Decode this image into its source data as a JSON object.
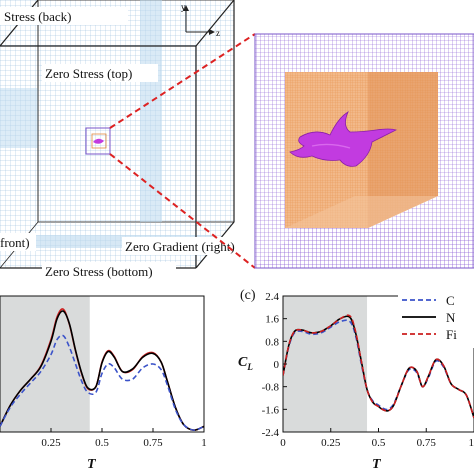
{
  "diagram": {
    "boundary_labels": {
      "back": "Stress (back)",
      "top": "Zero Stress (top)",
      "right": "Zero Gradient (right)",
      "front": "front)",
      "bottom": "Zero Stress (bottom)"
    },
    "axis_labels": {
      "y": "y",
      "z": "z"
    }
  },
  "chart_data": [
    {
      "type": "line",
      "panel": "left",
      "xlabel": "T",
      "x_ticks": [
        "0.25",
        "0.5",
        "0.75",
        "1"
      ],
      "xlim": [
        0,
        1
      ],
      "ylim": [
        -1.25,
        2.35
      ],
      "shaded_region": [
        0,
        0.44
      ],
      "series": [
        {
          "color": "#cc1f1f",
          "style": "solid",
          "x": [
            0,
            0.05,
            0.1,
            0.15,
            0.2,
            0.25,
            0.28,
            0.31,
            0.34,
            0.37,
            0.4,
            0.43,
            0.47,
            0.5,
            0.53,
            0.56,
            0.6,
            0.65,
            0.7,
            0.75,
            0.79,
            0.82,
            0.86,
            0.9,
            0.95,
            1.0
          ],
          "y": [
            -1.1,
            -0.55,
            -0.15,
            0.15,
            0.5,
            1.2,
            1.8,
            2.0,
            1.6,
            0.9,
            0.3,
            -0.1,
            -0.05,
            0.6,
            0.9,
            0.75,
            0.35,
            0.4,
            0.75,
            0.85,
            0.6,
            0.1,
            -0.6,
            -1.05,
            -1.2,
            -1.1
          ]
        },
        {
          "color": "#000000",
          "style": "solid",
          "x": [
            0,
            0.05,
            0.1,
            0.15,
            0.2,
            0.25,
            0.28,
            0.31,
            0.34,
            0.37,
            0.4,
            0.43,
            0.47,
            0.5,
            0.53,
            0.56,
            0.6,
            0.65,
            0.7,
            0.75,
            0.79,
            0.82,
            0.86,
            0.9,
            0.95,
            1.0
          ],
          "y": [
            -1.1,
            -0.55,
            -0.15,
            0.15,
            0.48,
            1.15,
            1.75,
            1.95,
            1.62,
            0.92,
            0.32,
            -0.08,
            -0.05,
            0.58,
            0.88,
            0.73,
            0.35,
            0.42,
            0.73,
            0.83,
            0.6,
            0.1,
            -0.6,
            -1.05,
            -1.2,
            -1.1
          ]
        },
        {
          "color": "#3b53c9",
          "style": "dashed",
          "x": [
            0,
            0.05,
            0.1,
            0.15,
            0.2,
            0.25,
            0.28,
            0.31,
            0.34,
            0.37,
            0.4,
            0.43,
            0.47,
            0.5,
            0.53,
            0.56,
            0.6,
            0.65,
            0.7,
            0.75,
            0.79,
            0.82,
            0.86,
            0.9,
            0.95,
            1.0
          ],
          "y": [
            -1.1,
            -0.6,
            -0.25,
            0.05,
            0.35,
            0.8,
            1.2,
            1.3,
            1.0,
            0.55,
            0.1,
            -0.2,
            -0.2,
            0.3,
            0.55,
            0.45,
            0.15,
            0.15,
            0.45,
            0.55,
            0.4,
            0.0,
            -0.65,
            -1.05,
            -1.2,
            -1.1
          ]
        }
      ]
    },
    {
      "type": "line",
      "panel": "c",
      "panel_label": "(c)",
      "ylabel": "C",
      "ylabel_sub": "L",
      "xlabel": "T",
      "x_ticks": [
        "0",
        "0.25",
        "0.5",
        "0.75",
        "1"
      ],
      "y_ticks": [
        "2.4",
        "1.6",
        "0.8",
        "0",
        "-0.8",
        "-1.6",
        "-2.4"
      ],
      "xlim": [
        0,
        1
      ],
      "ylim": [
        -2.4,
        2.4
      ],
      "shaded_region": [
        0,
        0.44
      ],
      "legend": {
        "position": "top-right",
        "entries": [
          "C",
          "N",
          "Fi"
        ]
      },
      "series": [
        {
          "name": "C",
          "color": "#3b53c9",
          "style": "dashed",
          "x": [
            0,
            0.03,
            0.06,
            0.1,
            0.15,
            0.2,
            0.25,
            0.3,
            0.35,
            0.38,
            0.41,
            0.44,
            0.47,
            0.5,
            0.52,
            0.55,
            0.58,
            0.62,
            0.66,
            0.7,
            0.73,
            0.76,
            0.8,
            0.84,
            0.88,
            0.92,
            0.96,
            1.0
          ],
          "y": [
            -0.4,
            0.6,
            1.1,
            1.15,
            1.05,
            1.1,
            1.3,
            1.5,
            1.5,
            1.0,
            0.0,
            -0.9,
            -1.3,
            -1.45,
            -1.55,
            -1.6,
            -1.4,
            -0.75,
            -0.2,
            -0.3,
            -0.8,
            -0.5,
            0.1,
            -0.1,
            -0.7,
            -0.9,
            -1.1,
            -1.9
          ]
        },
        {
          "name": "N",
          "color": "#000000",
          "style": "solid",
          "x": [
            0,
            0.03,
            0.06,
            0.1,
            0.15,
            0.2,
            0.25,
            0.3,
            0.35,
            0.38,
            0.41,
            0.44,
            0.47,
            0.5,
            0.52,
            0.55,
            0.58,
            0.62,
            0.66,
            0.7,
            0.73,
            0.76,
            0.8,
            0.84,
            0.88,
            0.92,
            0.96,
            1.0
          ],
          "y": [
            -0.4,
            0.65,
            1.15,
            1.2,
            1.1,
            1.15,
            1.35,
            1.6,
            1.65,
            1.1,
            0.1,
            -0.9,
            -1.35,
            -1.5,
            -1.6,
            -1.65,
            -1.45,
            -0.75,
            -0.15,
            -0.25,
            -0.8,
            -0.45,
            0.15,
            -0.05,
            -0.7,
            -0.9,
            -1.1,
            -1.9
          ]
        },
        {
          "name": "Fi",
          "color": "#cc1f1f",
          "style": "dashed",
          "x": [
            0,
            0.03,
            0.06,
            0.1,
            0.15,
            0.2,
            0.25,
            0.3,
            0.35,
            0.38,
            0.41,
            0.44,
            0.47,
            0.5,
            0.52,
            0.55,
            0.58,
            0.62,
            0.66,
            0.7,
            0.73,
            0.76,
            0.8,
            0.84,
            0.88,
            0.92,
            0.96,
            1.0
          ],
          "y": [
            -0.4,
            0.65,
            1.15,
            1.2,
            1.1,
            1.15,
            1.35,
            1.6,
            1.7,
            1.15,
            0.1,
            -0.9,
            -1.35,
            -1.5,
            -1.6,
            -1.65,
            -1.45,
            -0.75,
            -0.15,
            -0.25,
            -0.8,
            -0.45,
            0.15,
            -0.05,
            -0.7,
            -0.9,
            -1.1,
            -1.9
          ]
        }
      ]
    }
  ]
}
